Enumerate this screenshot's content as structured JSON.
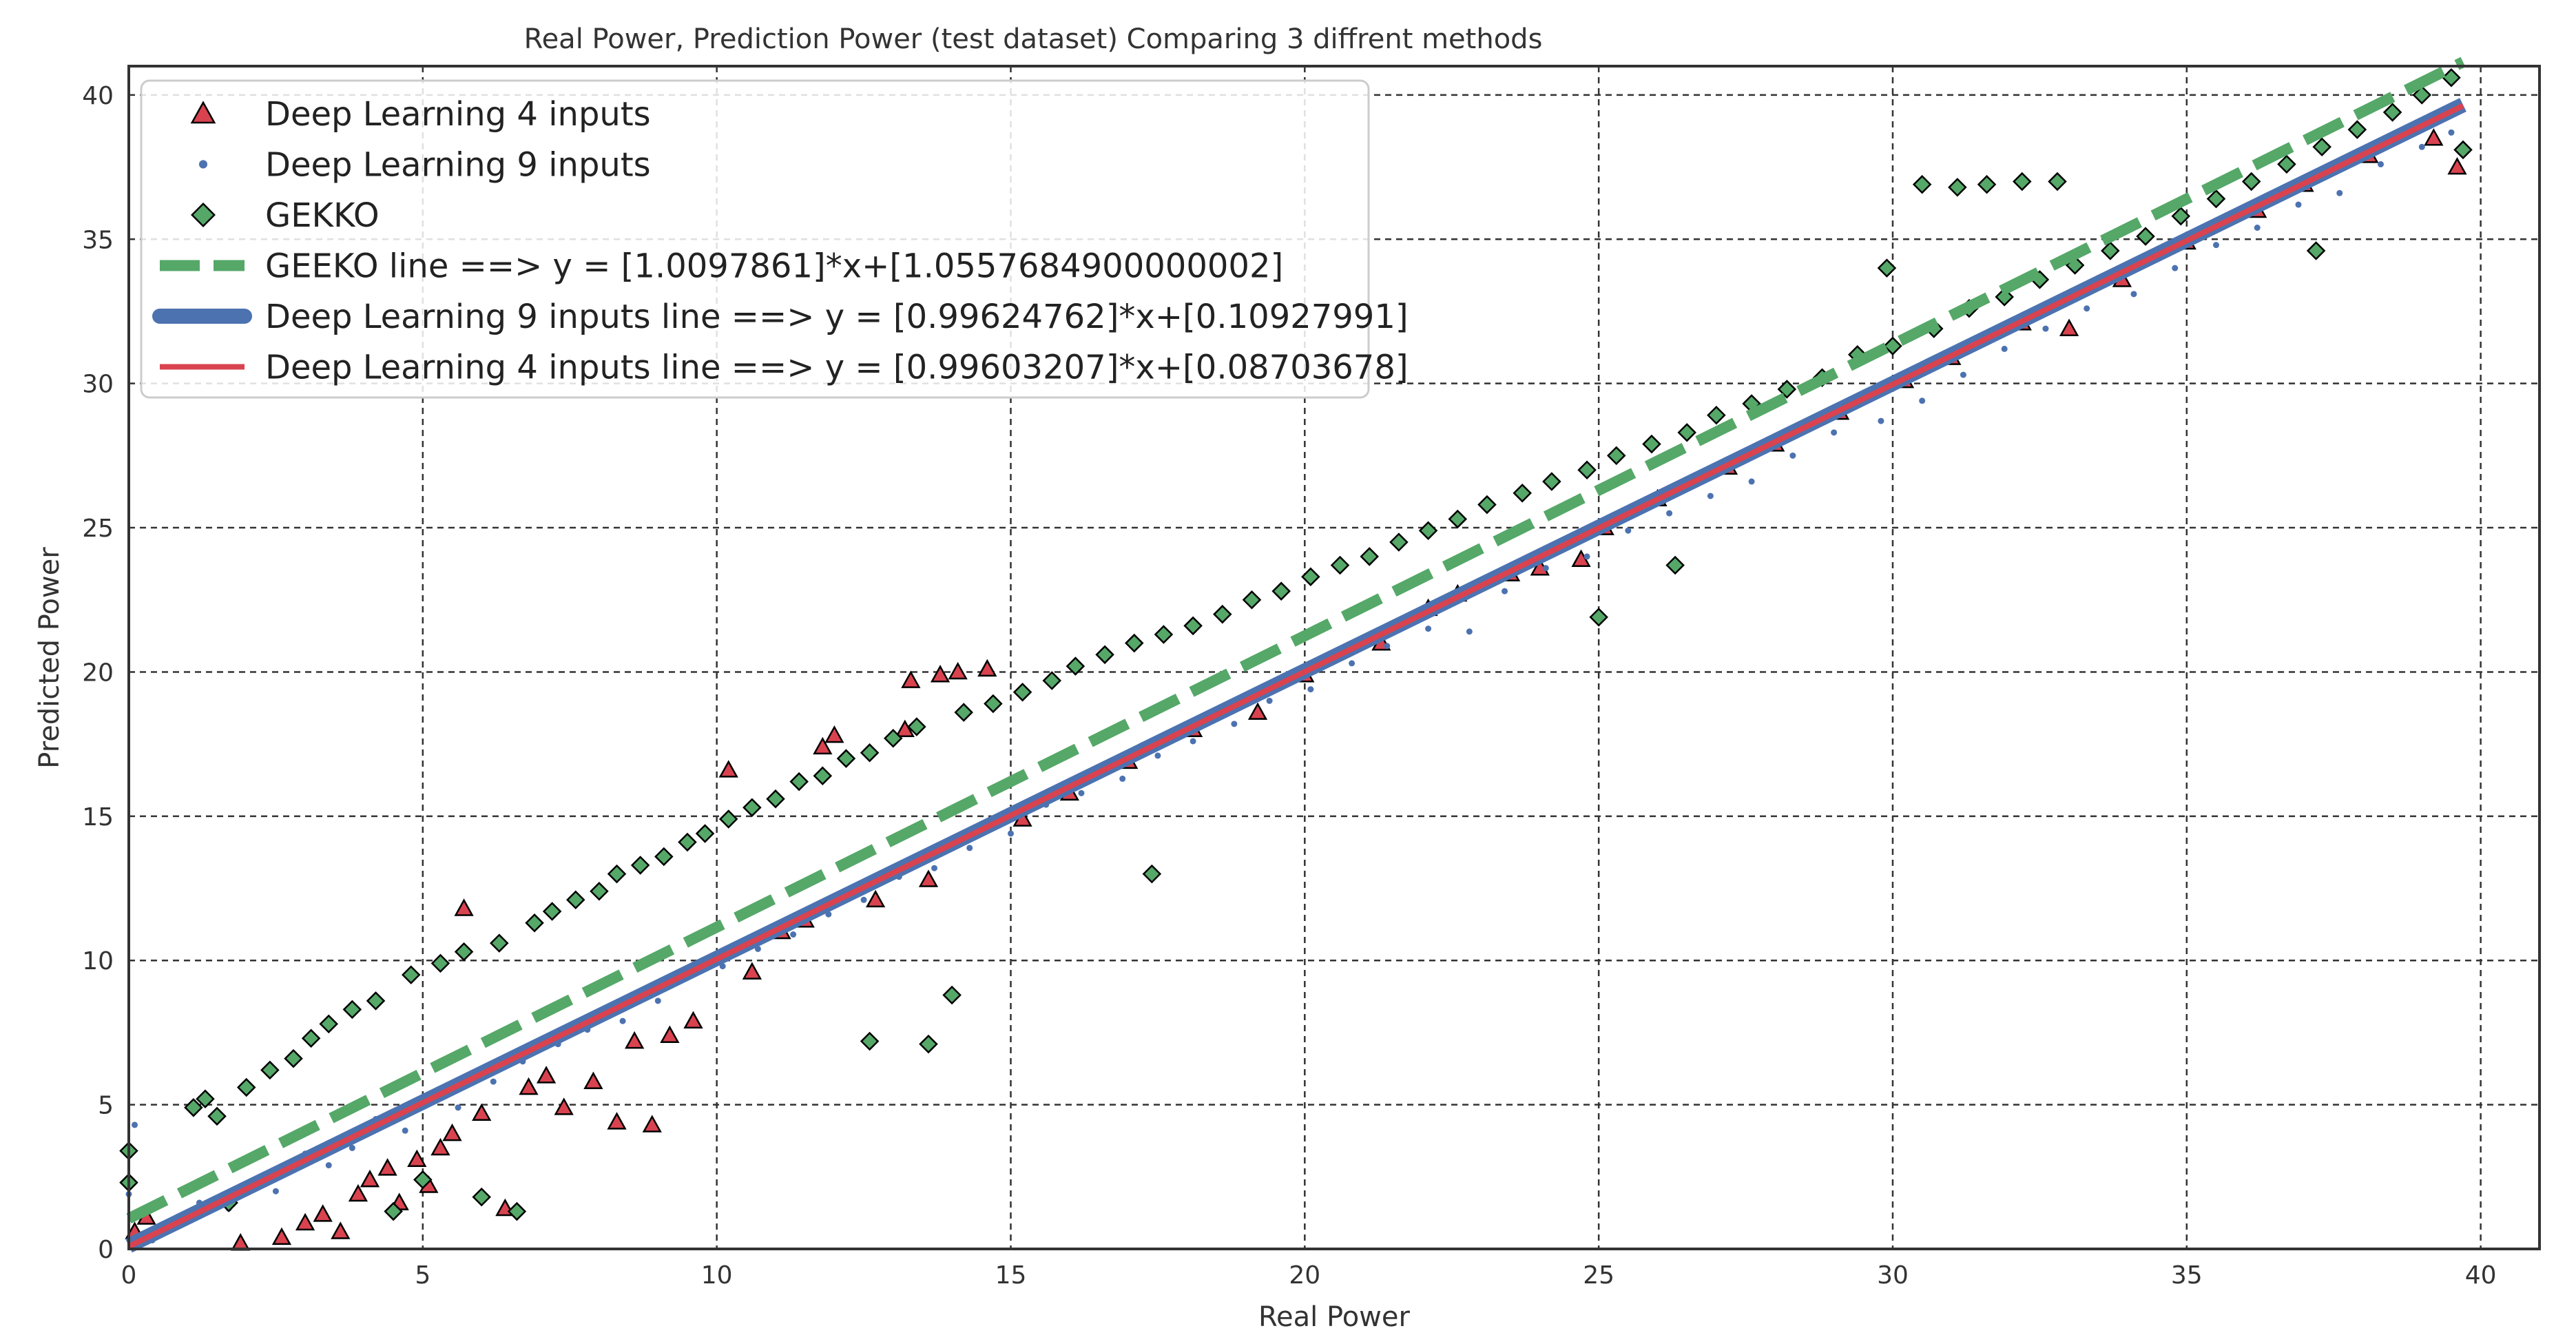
{
  "chart_data": {
    "type": "scatter",
    "title": "Real Power, Prediction Power (test dataset) Comparing 3 diffrent methods",
    "xlabel": "Real Power",
    "ylabel": "Predicted Power",
    "xlim": [
      0,
      41
    ],
    "ylim": [
      0,
      41
    ],
    "xticks": [
      0,
      5,
      10,
      15,
      20,
      25,
      30,
      35,
      40
    ],
    "yticks": [
      0,
      5,
      10,
      15,
      20,
      25,
      30,
      35,
      40
    ],
    "grid": true,
    "legend_position": "top-left",
    "series": [
      {
        "name": "Deep Learning 4 inputs",
        "kind": "scatter",
        "marker": "triangle",
        "color": "#d9434f",
        "points": [
          [
            0.1,
            0.6
          ],
          [
            0.3,
            1.1
          ],
          [
            1.9,
            0.2
          ],
          [
            2.6,
            0.4
          ],
          [
            3.0,
            0.9
          ],
          [
            3.3,
            1.2
          ],
          [
            3.6,
            0.6
          ],
          [
            3.9,
            1.9
          ],
          [
            4.1,
            2.4
          ],
          [
            4.4,
            2.8
          ],
          [
            4.6,
            1.6
          ],
          [
            4.9,
            3.1
          ],
          [
            5.1,
            2.2
          ],
          [
            5.3,
            3.5
          ],
          [
            5.5,
            4.0
          ],
          [
            5.7,
            11.8
          ],
          [
            6.0,
            4.7
          ],
          [
            6.4,
            1.4
          ],
          [
            6.8,
            5.6
          ],
          [
            7.1,
            6.0
          ],
          [
            7.4,
            4.9
          ],
          [
            7.9,
            5.8
          ],
          [
            8.3,
            4.4
          ],
          [
            8.6,
            7.2
          ],
          [
            8.9,
            4.3
          ],
          [
            9.2,
            7.4
          ],
          [
            9.6,
            7.9
          ],
          [
            10.2,
            16.6
          ],
          [
            10.6,
            9.6
          ],
          [
            11.1,
            11.0
          ],
          [
            11.5,
            11.4
          ],
          [
            11.8,
            17.4
          ],
          [
            12.0,
            17.8
          ],
          [
            12.7,
            12.1
          ],
          [
            13.2,
            18.0
          ],
          [
            13.3,
            19.7
          ],
          [
            13.8,
            19.9
          ],
          [
            13.6,
            12.8
          ],
          [
            14.1,
            20.0
          ],
          [
            14.6,
            20.1
          ],
          [
            15.2,
            14.9
          ],
          [
            16.0,
            15.8
          ],
          [
            17.0,
            16.9
          ],
          [
            18.1,
            18.0
          ],
          [
            19.2,
            18.6
          ],
          [
            20.0,
            19.9
          ],
          [
            21.3,
            21.0
          ],
          [
            22.1,
            22.2
          ],
          [
            22.6,
            22.7
          ],
          [
            23.5,
            23.4
          ],
          [
            24.0,
            23.6
          ],
          [
            24.7,
            23.9
          ],
          [
            25.1,
            25.0
          ],
          [
            26.0,
            26.0
          ],
          [
            27.2,
            27.1
          ],
          [
            28.0,
            27.9
          ],
          [
            29.1,
            29.0
          ],
          [
            30.2,
            30.1
          ],
          [
            31.0,
            30.9
          ],
          [
            32.2,
            32.1
          ],
          [
            33.0,
            31.9
          ],
          [
            33.9,
            33.6
          ],
          [
            35.0,
            34.9
          ],
          [
            36.2,
            36.0
          ],
          [
            37.0,
            36.9
          ],
          [
            38.1,
            37.9
          ],
          [
            39.2,
            38.5
          ],
          [
            39.6,
            37.5
          ]
        ]
      },
      {
        "name": "Deep Learning 9 inputs",
        "kind": "scatter",
        "marker": "dot",
        "color": "#4c72b0",
        "points": [
          [
            0.0,
            1.9
          ],
          [
            0.1,
            4.3
          ],
          [
            0.4,
            0.3
          ],
          [
            0.8,
            1.0
          ],
          [
            1.2,
            1.6
          ],
          [
            1.7,
            1.4
          ],
          [
            2.1,
            2.3
          ],
          [
            2.5,
            2.0
          ],
          [
            3.0,
            3.3
          ],
          [
            3.4,
            2.9
          ],
          [
            3.8,
            3.5
          ],
          [
            4.2,
            4.5
          ],
          [
            4.7,
            4.1
          ],
          [
            5.1,
            5.3
          ],
          [
            5.6,
            4.9
          ],
          [
            6.2,
            5.8
          ],
          [
            6.7,
            6.5
          ],
          [
            7.3,
            7.1
          ],
          [
            7.8,
            7.6
          ],
          [
            8.4,
            7.9
          ],
          [
            9.0,
            8.6
          ],
          [
            9.5,
            9.5
          ],
          [
            10.1,
            9.8
          ],
          [
            10.7,
            10.4
          ],
          [
            11.3,
            10.9
          ],
          [
            11.9,
            11.6
          ],
          [
            12.5,
            12.1
          ],
          [
            13.1,
            12.9
          ],
          [
            13.7,
            13.2
          ],
          [
            14.3,
            13.9
          ],
          [
            15.0,
            14.4
          ],
          [
            15.6,
            15.4
          ],
          [
            16.2,
            15.8
          ],
          [
            16.9,
            16.3
          ],
          [
            17.5,
            17.1
          ],
          [
            18.1,
            17.6
          ],
          [
            18.8,
            18.2
          ],
          [
            19.4,
            19.0
          ],
          [
            20.1,
            19.4
          ],
          [
            20.8,
            20.3
          ],
          [
            21.4,
            20.9
          ],
          [
            22.1,
            21.5
          ],
          [
            22.8,
            21.4
          ],
          [
            23.4,
            22.8
          ],
          [
            24.1,
            23.6
          ],
          [
            24.8,
            24.0
          ],
          [
            25.5,
            24.9
          ],
          [
            26.2,
            25.5
          ],
          [
            26.9,
            26.1
          ],
          [
            27.6,
            26.6
          ],
          [
            28.3,
            27.5
          ],
          [
            29.0,
            28.3
          ],
          [
            29.8,
            28.7
          ],
          [
            30.5,
            29.4
          ],
          [
            31.2,
            30.3
          ],
          [
            31.9,
            31.2
          ],
          [
            32.6,
            31.9
          ],
          [
            33.3,
            32.6
          ],
          [
            34.1,
            33.1
          ],
          [
            34.8,
            34.0
          ],
          [
            35.5,
            34.8
          ],
          [
            36.2,
            35.4
          ],
          [
            36.9,
            36.2
          ],
          [
            37.6,
            36.6
          ],
          [
            38.3,
            37.6
          ],
          [
            39.0,
            38.2
          ],
          [
            39.5,
            38.7
          ]
        ]
      },
      {
        "name": "GEKKO",
        "kind": "scatter",
        "marker": "diamond",
        "color": "#55a868",
        "points": [
          [
            0.0,
            2.3
          ],
          [
            0.0,
            3.4
          ],
          [
            1.1,
            4.9
          ],
          [
            1.3,
            5.2
          ],
          [
            1.5,
            4.6
          ],
          [
            1.7,
            1.6
          ],
          [
            2.0,
            5.6
          ],
          [
            2.4,
            6.2
          ],
          [
            2.8,
            6.6
          ],
          [
            3.1,
            7.3
          ],
          [
            3.4,
            7.8
          ],
          [
            3.8,
            8.3
          ],
          [
            4.2,
            8.6
          ],
          [
            4.5,
            1.3
          ],
          [
            4.8,
            9.5
          ],
          [
            5.0,
            2.4
          ],
          [
            5.3,
            9.9
          ],
          [
            5.7,
            10.3
          ],
          [
            6.0,
            1.8
          ],
          [
            6.3,
            10.6
          ],
          [
            6.6,
            1.3
          ],
          [
            6.9,
            11.3
          ],
          [
            7.2,
            11.7
          ],
          [
            7.6,
            12.1
          ],
          [
            8.0,
            12.4
          ],
          [
            8.3,
            13.0
          ],
          [
            8.7,
            13.3
          ],
          [
            9.1,
            13.6
          ],
          [
            9.5,
            14.1
          ],
          [
            9.8,
            14.4
          ],
          [
            10.2,
            14.9
          ],
          [
            10.6,
            15.3
          ],
          [
            11.0,
            15.6
          ],
          [
            11.4,
            16.2
          ],
          [
            11.8,
            16.4
          ],
          [
            12.2,
            17.0
          ],
          [
            12.6,
            7.2
          ],
          [
            12.6,
            17.2
          ],
          [
            13.0,
            17.7
          ],
          [
            13.4,
            18.1
          ],
          [
            13.6,
            7.1
          ],
          [
            14.0,
            8.8
          ],
          [
            14.2,
            18.6
          ],
          [
            14.7,
            18.9
          ],
          [
            15.2,
            19.3
          ],
          [
            15.7,
            19.7
          ],
          [
            16.1,
            20.2
          ],
          [
            16.6,
            20.6
          ],
          [
            17.1,
            21.0
          ],
          [
            17.4,
            13.0
          ],
          [
            17.6,
            21.3
          ],
          [
            18.1,
            21.6
          ],
          [
            18.6,
            22.0
          ],
          [
            19.1,
            22.5
          ],
          [
            19.6,
            22.8
          ],
          [
            20.1,
            23.3
          ],
          [
            20.6,
            23.7
          ],
          [
            21.1,
            24.0
          ],
          [
            21.6,
            24.5
          ],
          [
            22.1,
            24.9
          ],
          [
            22.6,
            25.3
          ],
          [
            23.1,
            25.8
          ],
          [
            23.7,
            26.2
          ],
          [
            24.2,
            26.6
          ],
          [
            24.8,
            27.0
          ],
          [
            25.0,
            21.9
          ],
          [
            25.3,
            27.5
          ],
          [
            25.9,
            27.9
          ],
          [
            26.3,
            23.7
          ],
          [
            26.5,
            28.3
          ],
          [
            27.0,
            28.9
          ],
          [
            27.6,
            29.3
          ],
          [
            28.2,
            29.8
          ],
          [
            28.8,
            30.2
          ],
          [
            29.4,
            31.0
          ],
          [
            29.9,
            34.0
          ],
          [
            30.0,
            31.3
          ],
          [
            30.5,
            36.9
          ],
          [
            30.7,
            31.9
          ],
          [
            31.1,
            36.8
          ],
          [
            31.3,
            32.6
          ],
          [
            31.6,
            36.9
          ],
          [
            31.9,
            33.0
          ],
          [
            32.2,
            37.0
          ],
          [
            32.5,
            33.6
          ],
          [
            32.8,
            37.0
          ],
          [
            33.1,
            34.1
          ],
          [
            33.7,
            34.6
          ],
          [
            34.3,
            35.1
          ],
          [
            34.9,
            35.8
          ],
          [
            35.5,
            36.4
          ],
          [
            36.1,
            37.0
          ],
          [
            36.7,
            37.6
          ],
          [
            37.2,
            34.6
          ],
          [
            37.3,
            38.2
          ],
          [
            37.9,
            38.8
          ],
          [
            38.5,
            39.4
          ],
          [
            39.0,
            40.0
          ],
          [
            39.5,
            40.6
          ],
          [
            39.7,
            38.1
          ]
        ]
      },
      {
        "name": "GEEKO line ==> y = [1.0097861]*x+[1.0557684900000002]",
        "kind": "line",
        "style": "dashed",
        "color": "#55a868",
        "slope": 1.0097861,
        "intercept": 1.0557684900000002,
        "x_range": [
          0,
          39.7
        ]
      },
      {
        "name": "Deep Learning 9 inputs line ==> y = [0.99624762]*x+[0.10927991]",
        "kind": "line",
        "style": "solid-thick",
        "color": "#4c72b0",
        "slope": 0.99624762,
        "intercept": 0.10927991,
        "x_range": [
          0,
          39.7
        ]
      },
      {
        "name": "Deep Learning 4 inputs line ==> y = [0.99603207]*x+[0.08703678]",
        "kind": "line",
        "style": "solid",
        "color": "#d9434f",
        "slope": 0.99603207,
        "intercept": 0.08703678,
        "x_range": [
          0,
          39.7
        ]
      }
    ]
  }
}
